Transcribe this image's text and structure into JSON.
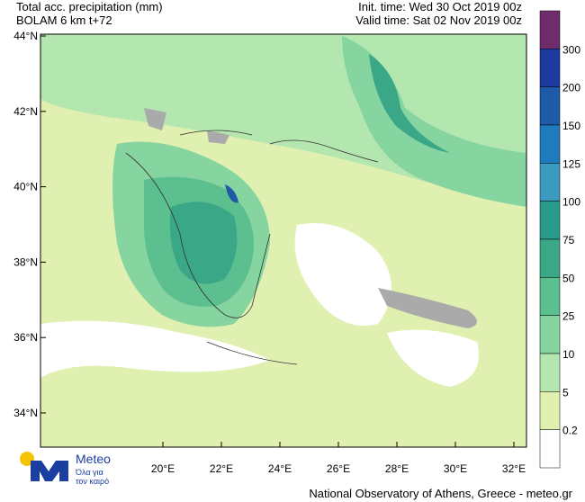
{
  "header": {
    "title_left": [
      "Total acc. precipitation (mm)",
      "BOLAM 6 km t+72"
    ],
    "title_right": [
      "Init. time: Wed 30 Oct 2019 00z",
      "Valid time: Sat 02 Nov 2019 00z"
    ]
  },
  "map": {
    "lat_labels": [
      "44°N",
      "42°N",
      "40°N",
      "38°N",
      "36°N",
      "34°N"
    ],
    "lon_labels": [
      "20°E",
      "22°E",
      "24°E",
      "26°E",
      "28°E",
      "30°E",
      "32°E"
    ]
  },
  "legend": {
    "levels": [
      300,
      200,
      150,
      125,
      100,
      75,
      50,
      25,
      10,
      5,
      0.2
    ],
    "colors": [
      "#6e2c6b",
      "#1f3a9e",
      "#1e5aa8",
      "#1e7bbd",
      "#3b9bbf",
      "#2a9a8a",
      "#3aa887",
      "#5bbf90",
      "#86d4a0",
      "#b4e6b0",
      "#dff0b0",
      "#ffffff"
    ]
  },
  "logo": {
    "name": "Meteo",
    "tagline": [
      "Όλα για",
      "τον καιρό"
    ]
  },
  "footer": "National Observatory of Athens, Greece - meteo.gr"
}
